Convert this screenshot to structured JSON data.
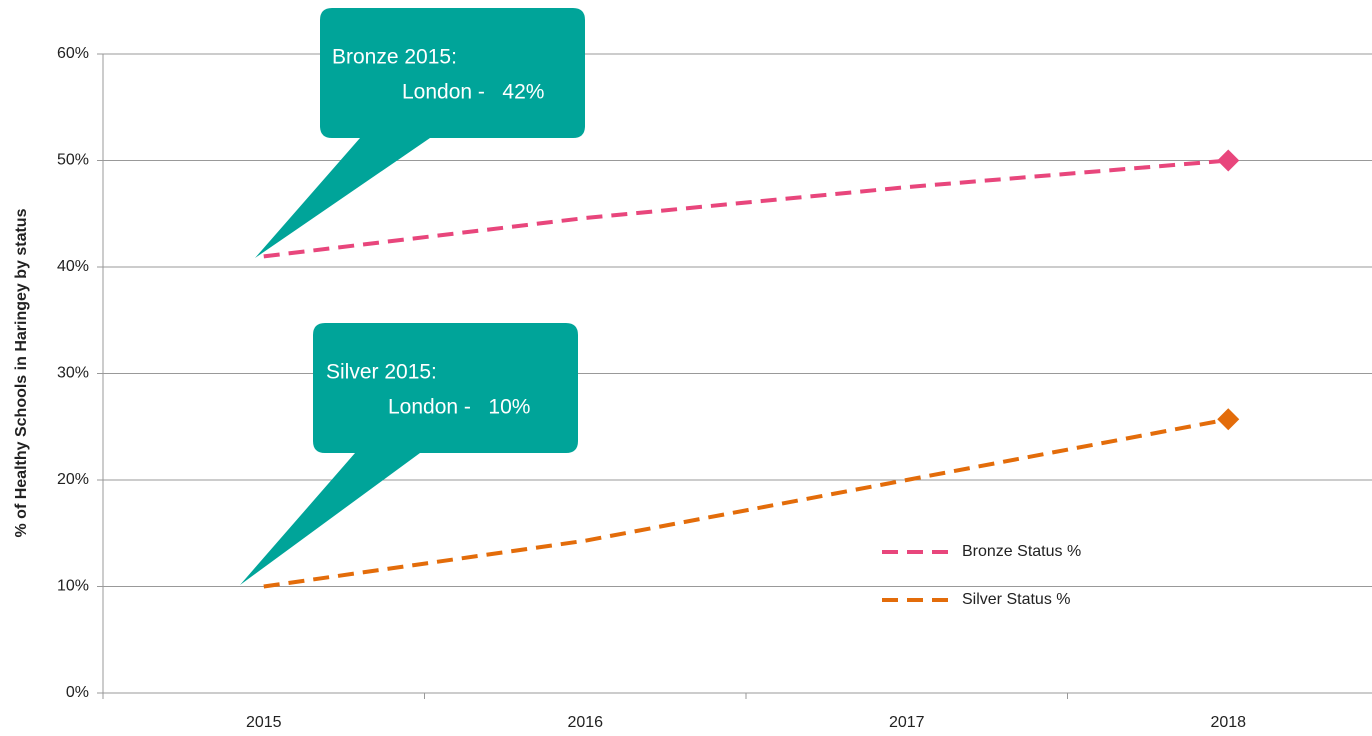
{
  "chart_data": {
    "type": "line",
    "categories": [
      "2015",
      "2016",
      "2017",
      "2018"
    ],
    "series": [
      {
        "name": "Bronze Status %",
        "color": "#e8467c",
        "values": [
          41,
          44.6,
          47.5,
          50
        ],
        "dash": true,
        "marker": "diamond"
      },
      {
        "name": "Silver Status %",
        "color": "#e36c0a",
        "values": [
          10,
          14.3,
          20,
          25.7
        ],
        "dash": true,
        "marker": "diamond"
      }
    ],
    "y_label": "% of Healthy Schools in Haringey by status",
    "ylim": [
      0,
      60
    ],
    "yticks": [
      {
        "value": 0,
        "label": "0%"
      },
      {
        "value": 10,
        "label": "10%"
      },
      {
        "value": 20,
        "label": "20%"
      },
      {
        "value": 30,
        "label": "30%"
      },
      {
        "value": 40,
        "label": "40%"
      },
      {
        "value": 50,
        "label": "50%"
      },
      {
        "value": 60,
        "label": "60%"
      }
    ],
    "grid": true,
    "legend": "lower right",
    "annotations": [
      {
        "lines": [
          "Bronze 2015:",
          "London -   42%"
        ]
      },
      {
        "lines": [
          "Silver 2015:",
          "London -   10%"
        ]
      }
    ]
  }
}
